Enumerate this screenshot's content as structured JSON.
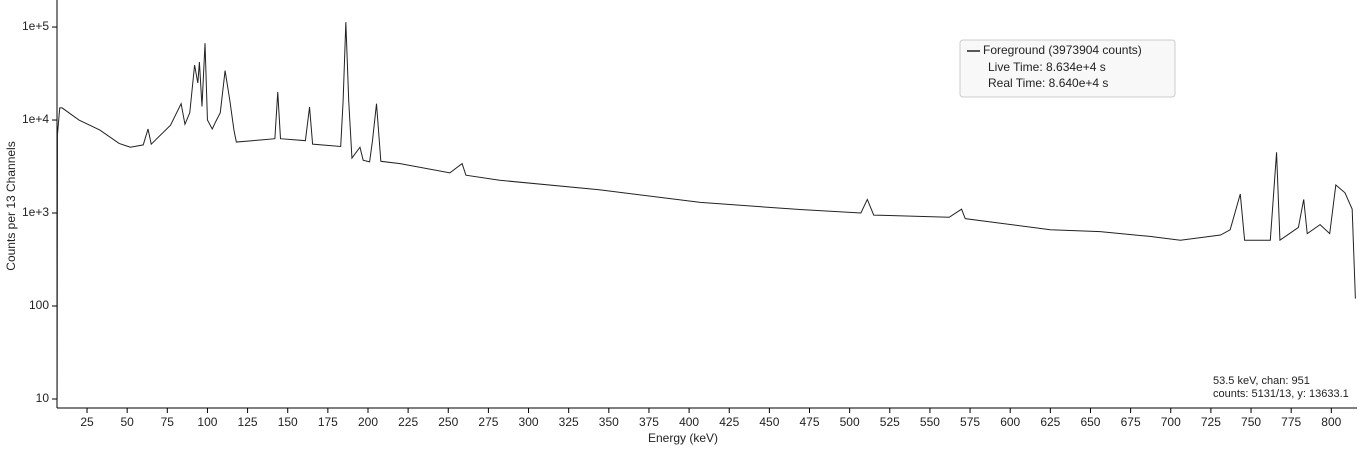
{
  "chart_data": {
    "type": "line",
    "x_label": "Energy (keV)",
    "y_label": "Counts per 13 Channels",
    "log_scale": "y",
    "xlim": [
      6.3,
      816
    ],
    "xticks": [
      25,
      50,
      75,
      100,
      125,
      150,
      175,
      200,
      225,
      250,
      275,
      300,
      325,
      350,
      375,
      400,
      425,
      450,
      475,
      500,
      525,
      550,
      575,
      600,
      625,
      650,
      675,
      700,
      725,
      750,
      775,
      800
    ],
    "ylim": [
      8,
      172600
    ],
    "yticks": [
      {
        "value": 100000,
        "label": "1e+5"
      },
      {
        "value": 10000,
        "label": "1e+4"
      },
      {
        "value": 1000,
        "label": "1e+3"
      },
      100,
      10
    ],
    "series": [
      {
        "name": "Foreground (3973904 counts)",
        "color": "#222222",
        "x": [
          6.4,
          6.6,
          8,
          9.5,
          20,
          33,
          45,
          52,
          60,
          63,
          65,
          77,
          83.6,
          86,
          89,
          92,
          94,
          95,
          96.6,
          98.5,
          100,
          103,
          105,
          108,
          111,
          114,
          116.5,
          118,
          133,
          142,
          143.8,
          145.5,
          161,
          163.6,
          165.5,
          183,
          184.5,
          186.2,
          188,
          190,
          195,
          197,
          201,
          202.8,
          205.3,
          208,
          220,
          251,
          258.6,
          261,
          282,
          344,
          407,
          469,
          507,
          511,
          515,
          562,
          569.7,
          572,
          625,
          656,
          687,
          706,
          731,
          737,
          743.3,
          746,
          762,
          765.9,
          768,
          779.5,
          782.8,
          785,
          793,
          799,
          802.8,
          808.5,
          813,
          815
        ],
        "values": [
          10,
          7000,
          13500,
          13500,
          10000,
          7800,
          5600,
          5100,
          5400,
          8000,
          5500,
          8800,
          15000,
          9000,
          12000,
          39000,
          25000,
          42000,
          14000,
          67000,
          10000,
          8000,
          9500,
          12000,
          34000,
          16000,
          7800,
          5800,
          6100,
          6300,
          20000,
          6300,
          6000,
          13800,
          5500,
          5200,
          16000,
          113000,
          16000,
          3900,
          5100,
          3700,
          3550,
          6000,
          15000,
          3600,
          3400,
          2700,
          3400,
          2550,
          2250,
          1780,
          1300,
          1090,
          1000,
          1400,
          950,
          900,
          1100,
          870,
          660,
          630,
          560,
          510,
          580,
          660,
          1600,
          510,
          510,
          4500,
          510,
          700,
          1400,
          600,
          750,
          600,
          2000,
          1650,
          1100,
          120
        ]
      }
    ],
    "legend_notes": [
      "Live Time: 8.634e+4 s",
      "Real Time: 8.640e+4 s"
    ],
    "annotations": [
      "53.5 keV, chan: 951",
      "counts: 5131/13, y: 13633.1"
    ]
  }
}
